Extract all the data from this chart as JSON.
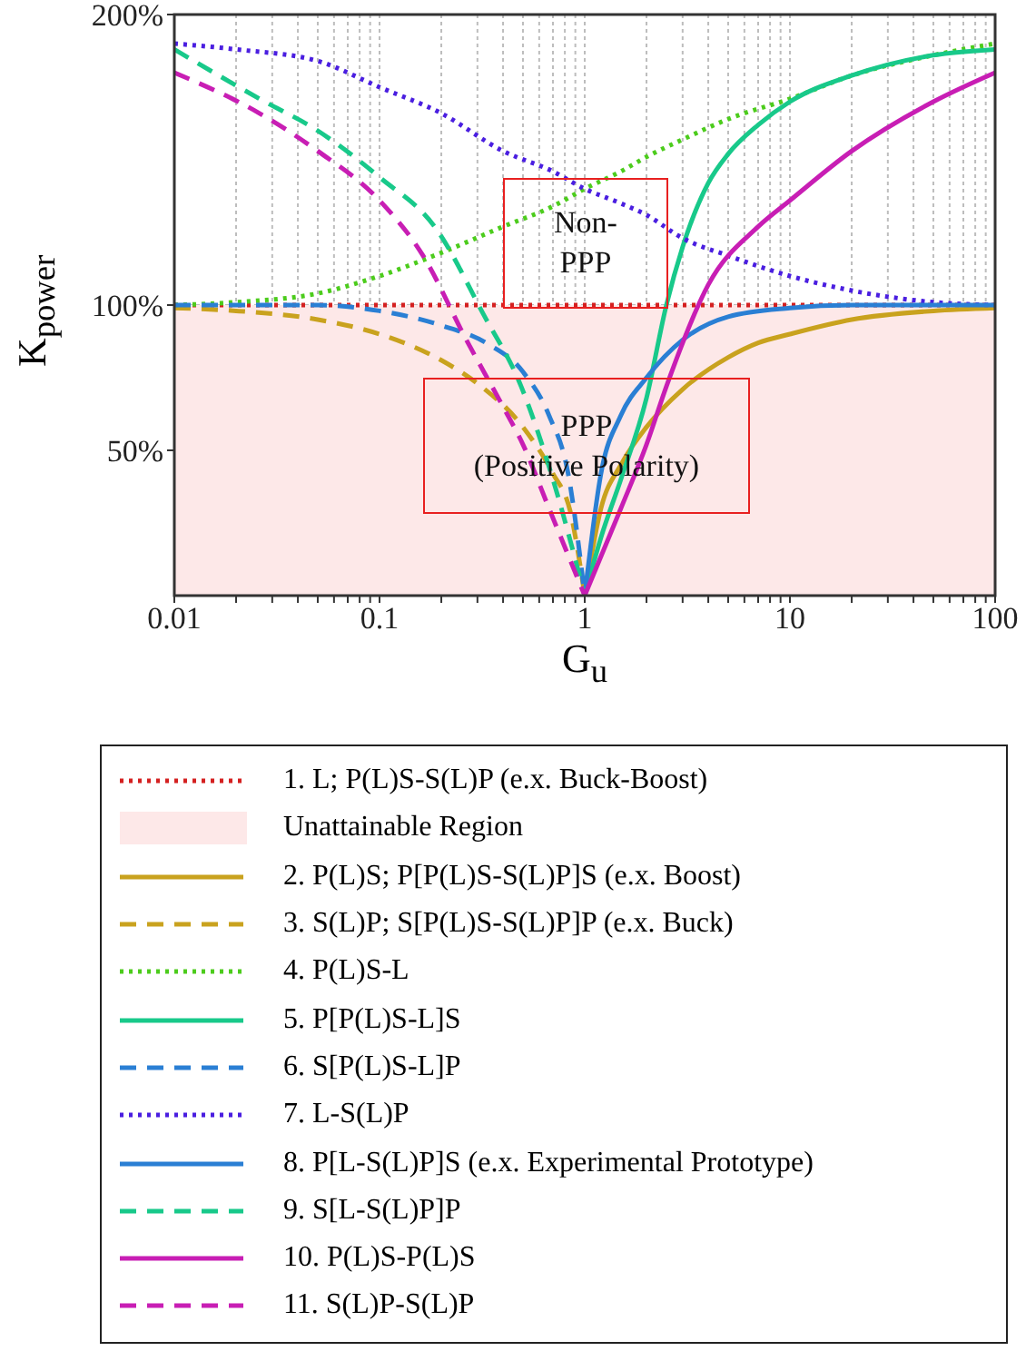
{
  "chart_data": {
    "type": "line",
    "xlabel": "G$_{u}$",
    "ylabel": "K$_{power}$",
    "log": "x",
    "xlim": [
      0.01,
      100
    ],
    "xticks": [
      0.01,
      {
        "value": 0.02,
        "label": null
      },
      {
        "value": 0.03,
        "label": null
      },
      {
        "value": 0.04,
        "label": null
      },
      {
        "value": 0.05,
        "label": null
      },
      {
        "value": 0.06,
        "label": null
      },
      {
        "value": 0.07,
        "label": null
      },
      {
        "value": 0.08,
        "label": null
      },
      {
        "value": 0.09,
        "label": null
      },
      0.1,
      {
        "value": 0.2,
        "label": null
      },
      {
        "value": 0.3,
        "label": null
      },
      {
        "value": 0.4,
        "label": null
      },
      {
        "value": 0.5,
        "label": null
      },
      {
        "value": 0.6,
        "label": null
      },
      {
        "value": 0.7,
        "label": null
      },
      {
        "value": 0.8,
        "label": null
      },
      {
        "value": 0.9,
        "label": null
      },
      1,
      {
        "value": 2,
        "label": null
      },
      {
        "value": 3,
        "label": null
      },
      {
        "value": 4,
        "label": null
      },
      {
        "value": 5,
        "label": null
      },
      {
        "value": 6,
        "label": null
      },
      {
        "value": 7,
        "label": null
      },
      {
        "value": 8,
        "label": null
      },
      {
        "value": 9,
        "label": null
      },
      10,
      {
        "value": 20,
        "label": null
      },
      {
        "value": 30,
        "label": null
      },
      {
        "value": 40,
        "label": null
      },
      {
        "value": 50,
        "label": null
      },
      {
        "value": 60,
        "label": null
      },
      {
        "value": 70,
        "label": null
      },
      {
        "value": 80,
        "label": null
      },
      {
        "value": 90,
        "label": null
      },
      100
    ],
    "ylim": [
      0,
      200
    ],
    "yticks": [
      {
        "value": 50,
        "label": "50%"
      },
      {
        "value": 100,
        "label": "100%"
      },
      {
        "value": 200,
        "label": "200%"
      }
    ],
    "grid": true,
    "legend": "bottom",
    "bands": [
      {
        "axis": "y",
        "from": 0,
        "to": 100,
        "label": "Unattainable Region",
        "color": "#fde8e8"
      }
    ],
    "annotations": [
      "Non-\nPPP",
      "PPP\n(Positive Polarity)"
    ],
    "series": [
      {
        "name": "1. L; P(L)S-S(L)P (e.x. Buck-Boost)",
        "color": "#d42020",
        "line_style": "dotted",
        "x": [
          0.01,
          0.1,
          1,
          10,
          100
        ],
        "values": [
          100,
          100,
          100,
          100,
          100
        ]
      },
      {
        "name": "2. P(L)S; P[P(L)S-S(L)P]S (e.x. Boost)",
        "color": "#c9a21e",
        "line_style": "solid",
        "x": [
          1,
          1.2,
          1.5,
          2,
          3,
          5,
          7,
          10,
          20,
          50,
          100
        ],
        "values": [
          0,
          30,
          45,
          58,
          71,
          82,
          87,
          90,
          95,
          98,
          99
        ]
      },
      {
        "name": "3. S(L)P; S[P(L)S-S(L)P]P (e.x. Buck)",
        "color": "#c9a21e",
        "line_style": "dashed",
        "x": [
          0.01,
          0.02,
          0.05,
          0.1,
          0.2,
          0.3,
          0.5,
          0.7,
          0.85,
          1
        ],
        "values": [
          99,
          98,
          95,
          90,
          81,
          73,
          58,
          42,
          29,
          0
        ]
      },
      {
        "name": "4. P(L)S-L",
        "color": "#4ccc1c",
        "line_style": "dotted",
        "x": [
          0.01,
          0.02,
          0.05,
          0.1,
          0.2,
          0.4,
          0.7,
          1,
          1.5,
          2,
          3,
          5,
          10,
          20,
          50,
          100
        ],
        "values": [
          100,
          101,
          104,
          110,
          118,
          127,
          134,
          140,
          146,
          151,
          157,
          164,
          171,
          179,
          186,
          190
        ]
      },
      {
        "name": "5. P[P(L)S-L]S",
        "color": "#18c98a",
        "line_style": "solid",
        "x": [
          1,
          1.2,
          1.5,
          2,
          2.5,
          3,
          4,
          5,
          7,
          10,
          20,
          50,
          100
        ],
        "values": [
          0,
          20,
          40,
          68,
          100,
          120,
          142,
          152,
          162,
          170,
          179,
          186,
          188
        ]
      },
      {
        "name": "6. S[P(L)S-L]P",
        "color": "#2a7fd4",
        "line_style": "dashed",
        "x": [
          0.01,
          0.05,
          0.1,
          0.2,
          0.33,
          0.5,
          0.67,
          0.83,
          1
        ],
        "values": [
          100,
          100,
          98,
          93,
          87,
          77,
          62,
          42,
          0
        ]
      },
      {
        "name": "7. L-S(L)P",
        "color": "#4a1ee0",
        "line_style": "dotted",
        "x": [
          0.01,
          0.02,
          0.05,
          0.1,
          0.2,
          0.4,
          0.7,
          1,
          1.5,
          2,
          3,
          5,
          10,
          20,
          50,
          100
        ],
        "values": [
          190,
          188,
          184,
          175,
          166,
          153,
          146,
          140,
          135,
          131,
          123,
          117,
          110,
          105,
          101,
          100
        ]
      },
      {
        "name": "8. P[L-S(L)P]S (e.x. Experimental Prototype)",
        "color": "#2a7fd4",
        "line_style": "solid",
        "x": [
          1,
          1.2,
          1.5,
          2,
          3,
          5,
          10,
          20,
          100
        ],
        "values": [
          0,
          42,
          62,
          75,
          88,
          96,
          99,
          100,
          100
        ]
      },
      {
        "name": "9. S[L-S(L)P]P",
        "color": "#18c98a",
        "line_style": "dashed",
        "x": [
          0.01,
          0.026,
          0.05,
          0.1,
          0.19,
          0.32,
          0.49,
          0.7,
          1
        ],
        "values": [
          188,
          171,
          160,
          144,
          126,
          97,
          72,
          40,
          0
        ]
      },
      {
        "name": "10. P(L)S-P(L)S",
        "color": "#c81eb4",
        "line_style": "solid",
        "x": [
          1,
          1.5,
          2,
          2.5,
          4,
          7,
          10,
          20,
          50,
          100
        ],
        "values": [
          0,
          30,
          52,
          72,
          107,
          127,
          136,
          153,
          170,
          180
        ]
      },
      {
        "name": "11. S(L)P-S(L)P",
        "color": "#c81eb4",
        "line_style": "dashed",
        "x": [
          0.01,
          0.026,
          0.05,
          0.1,
          0.163,
          0.265,
          0.4,
          0.5,
          0.67,
          1
        ],
        "values": [
          180,
          166,
          153,
          136,
          117,
          88,
          65,
          52,
          30,
          0
        ]
      }
    ]
  }
}
